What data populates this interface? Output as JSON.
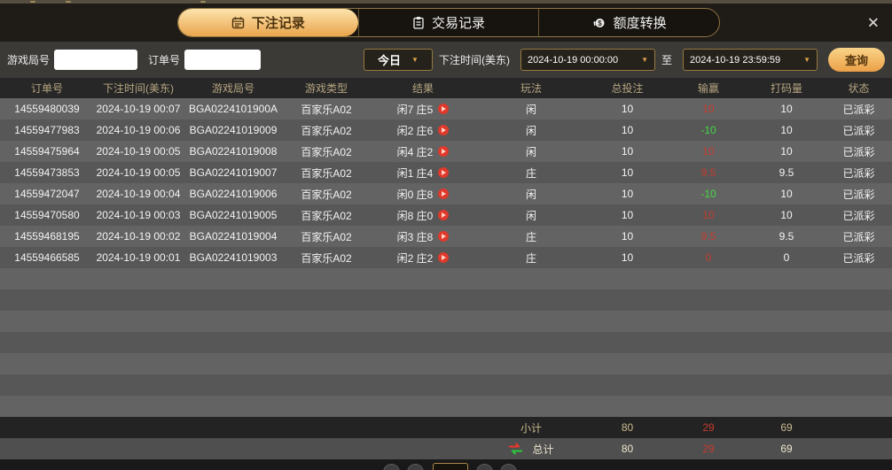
{
  "window": {
    "close_label": "✕"
  },
  "tabs": [
    {
      "label": "下注记录",
      "icon": "calendar-icon",
      "active": true
    },
    {
      "label": "交易记录",
      "icon": "clipboard-icon",
      "active": false
    },
    {
      "label": "额度转换",
      "icon": "coin-exchange-icon",
      "active": false
    }
  ],
  "filters": {
    "game_round_label": "游戏局号",
    "game_round_value": "",
    "order_no_label": "订单号",
    "order_no_value": "",
    "range_preset": "今日",
    "bet_time_label": "下注时间(美东)",
    "start_time": "2024-10-19 00:00:00",
    "to_label": "至",
    "end_time": "2024-10-19 23:59:59",
    "query_label": "查询",
    "caret": "▼"
  },
  "table": {
    "headers": [
      "订单号",
      "下注时间(美东)",
      "游戏局号",
      "游戏类型",
      "结果",
      "玩法",
      "总投注",
      "输赢",
      "打码量",
      "状态"
    ],
    "rows": [
      {
        "order": "14559480039",
        "time": "2024-10-19 00:07",
        "round": "BGA0224101900A",
        "game": "百家乐A02",
        "result": "闲7 庄5",
        "play": "闲",
        "bet": "10",
        "winloss": "10",
        "wl_color": "red",
        "turnover": "10",
        "status": "已派彩"
      },
      {
        "order": "14559477983",
        "time": "2024-10-19 00:06",
        "round": "BGA02241019009",
        "game": "百家乐A02",
        "result": "闲2 庄6",
        "play": "闲",
        "bet": "10",
        "winloss": "-10",
        "wl_color": "green",
        "turnover": "10",
        "status": "已派彩"
      },
      {
        "order": "14559475964",
        "time": "2024-10-19 00:05",
        "round": "BGA02241019008",
        "game": "百家乐A02",
        "result": "闲4 庄2",
        "play": "闲",
        "bet": "10",
        "winloss": "10",
        "wl_color": "red",
        "turnover": "10",
        "status": "已派彩"
      },
      {
        "order": "14559473853",
        "time": "2024-10-19 00:05",
        "round": "BGA02241019007",
        "game": "百家乐A02",
        "result": "闲1 庄4",
        "play": "庄",
        "bet": "10",
        "winloss": "9.5",
        "wl_color": "red",
        "turnover": "9.5",
        "status": "已派彩"
      },
      {
        "order": "14559472047",
        "time": "2024-10-19 00:04",
        "round": "BGA02241019006",
        "game": "百家乐A02",
        "result": "闲0 庄8",
        "play": "闲",
        "bet": "10",
        "winloss": "-10",
        "wl_color": "green",
        "turnover": "10",
        "status": "已派彩"
      },
      {
        "order": "14559470580",
        "time": "2024-10-19 00:03",
        "round": "BGA02241019005",
        "game": "百家乐A02",
        "result": "闲8 庄0",
        "play": "闲",
        "bet": "10",
        "winloss": "10",
        "wl_color": "red",
        "turnover": "10",
        "status": "已派彩"
      },
      {
        "order": "14559468195",
        "time": "2024-10-19 00:02",
        "round": "BGA02241019004",
        "game": "百家乐A02",
        "result": "闲3 庄8",
        "play": "庄",
        "bet": "10",
        "winloss": "9.5",
        "wl_color": "red",
        "turnover": "9.5",
        "status": "已派彩"
      },
      {
        "order": "14559466585",
        "time": "2024-10-19 00:01",
        "round": "BGA02241019003",
        "game": "百家乐A02",
        "result": "闲2 庄2",
        "play": "庄",
        "bet": "10",
        "winloss": "0",
        "wl_color": "red",
        "turnover": "0",
        "status": "已派彩"
      }
    ],
    "subtotal": {
      "label": "小计",
      "bet": "80",
      "winloss": "29",
      "turnover": "69"
    },
    "total": {
      "label": "总计",
      "bet": "80",
      "winloss": "29",
      "turnover": "69"
    }
  },
  "colors": {
    "accent_gold": "#e9a54c",
    "gold_border": "#8f7440",
    "win_red": "#c43b2e",
    "loss_green": "#43d843",
    "header_bg": "#1f1b16",
    "row_light": "#636363",
    "row_dark": "#575757"
  }
}
